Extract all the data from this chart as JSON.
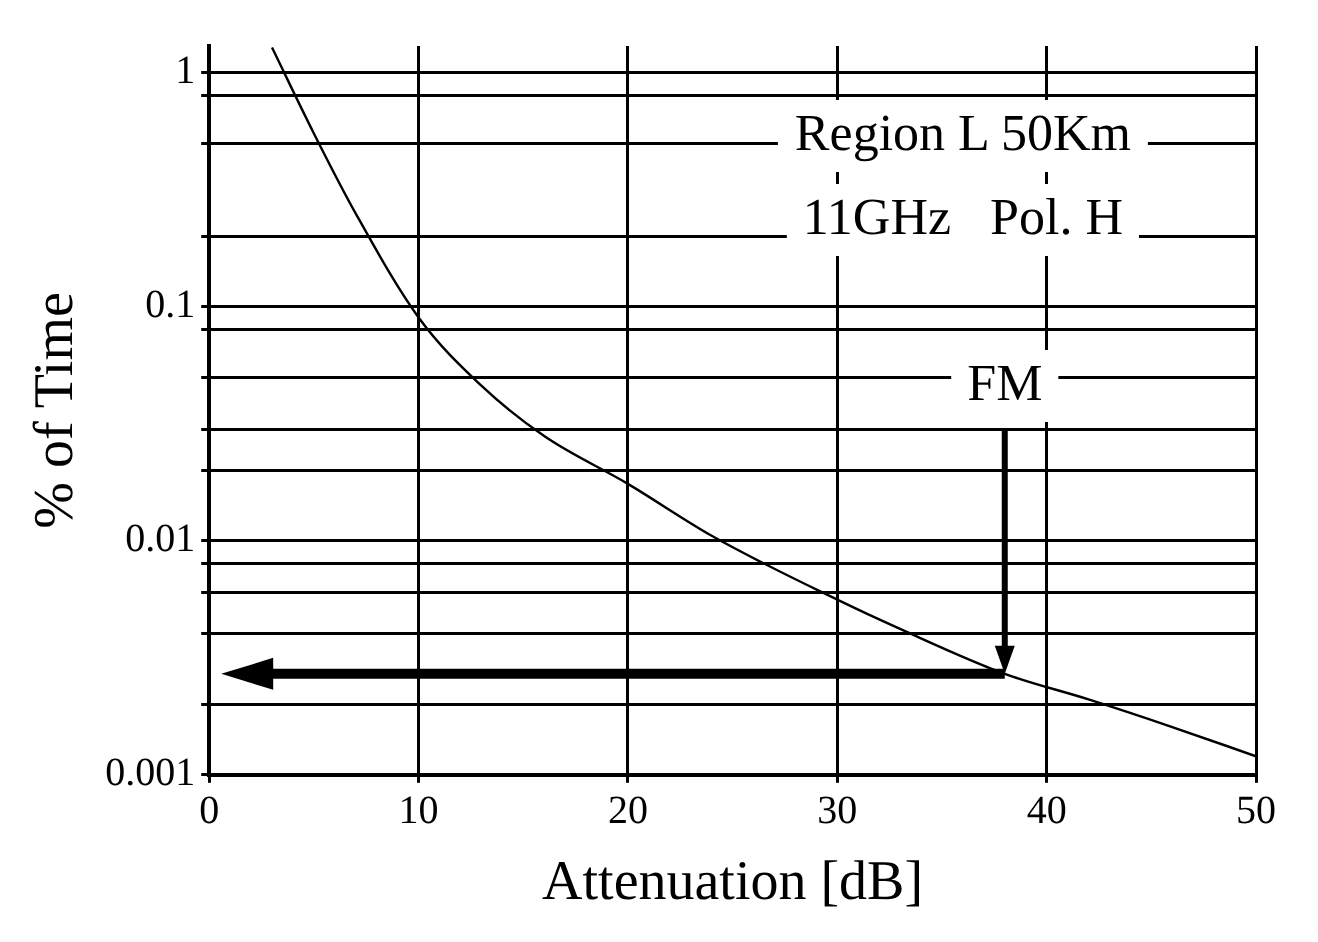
{
  "chart_data": {
    "type": "line",
    "xlabel": "Attenuation [dB]",
    "ylabel": "% of Time",
    "x": [
      3,
      5,
      7,
      10,
      13,
      16,
      20,
      24,
      30,
      33,
      38,
      42,
      46,
      50
    ],
    "values": [
      1.28,
      0.55,
      0.25,
      0.09,
      0.046,
      0.028,
      0.0175,
      0.0105,
      0.0056,
      0.0042,
      0.0027,
      0.0021,
      0.0016,
      0.0012
    ],
    "color": "#000000",
    "marker": "none",
    "line_style": "solid",
    "xlim": [
      0,
      50
    ],
    "xticks": [
      0,
      10,
      20,
      30,
      40,
      50
    ],
    "ylim": [
      0.001,
      1.3
    ],
    "log": true,
    "yticks": [
      0.001,
      {
        "value": 0.002,
        "label": null
      },
      {
        "value": 0.004,
        "label": null
      },
      {
        "value": 0.006,
        "label": null
      },
      {
        "value": 0.008,
        "label": null
      },
      0.01,
      {
        "value": 0.02,
        "label": null
      },
      {
        "value": 0.03,
        "label": null
      },
      {
        "value": 0.05,
        "label": null
      },
      {
        "value": 0.08,
        "label": null
      },
      0.1,
      {
        "value": 0.2,
        "label": null
      },
      {
        "value": 0.5,
        "label": null
      },
      {
        "value": 0.8,
        "label": null
      },
      1
    ],
    "grid": true,
    "legend": false,
    "annotations": [
      "Region L 50Km",
      "11GHz   Pol. H",
      "FM"
    ],
    "ref_lines": [
      {
        "axis": "x",
        "value": 38
      },
      {
        "axis": "y",
        "value": 0.0027
      }
    ]
  }
}
